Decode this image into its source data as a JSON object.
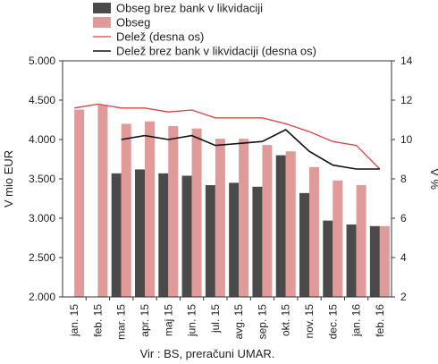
{
  "chart_data": {
    "type": "bar",
    "categories": [
      "jan. 15",
      "feb. 15",
      "mar. 15",
      "apr. 15",
      "maj 15",
      "jun. 15",
      "jul. 15",
      "avg. 15",
      "sep. 15",
      "okt. 15",
      "nov. 15",
      "dec. 15",
      "jan. 16",
      "feb. 16"
    ],
    "series": [
      {
        "name": "Obseg brez bank v likvidaciji",
        "kind": "bar",
        "axis": "left",
        "color": "#4a4a4a",
        "values": [
          null,
          null,
          3570,
          3620,
          3570,
          3540,
          3420,
          3450,
          3400,
          3800,
          3320,
          2970,
          2920,
          2900
        ]
      },
      {
        "name": "Obseg",
        "kind": "bar",
        "axis": "left",
        "color": "#e09a9a",
        "values": [
          4380,
          4440,
          4200,
          4230,
          4170,
          4140,
          4010,
          4010,
          3930,
          3850,
          3650,
          3480,
          3420,
          2900
        ]
      },
      {
        "name": "Delež (desna os)",
        "kind": "line",
        "axis": "right",
        "color": "#d94040",
        "values": [
          11.6,
          11.8,
          11.6,
          11.6,
          11.4,
          11.5,
          11.1,
          11.1,
          11.1,
          10.8,
          10.4,
          9.9,
          9.7,
          8.5
        ]
      },
      {
        "name": "Delež brez bank v likvidaciji (desna os)",
        "kind": "line",
        "axis": "right",
        "color": "#111111",
        "values": [
          null,
          null,
          10.0,
          10.2,
          10.0,
          10.2,
          9.7,
          9.8,
          9.9,
          10.5,
          9.4,
          8.7,
          8.5,
          8.5
        ]
      }
    ],
    "ylabel": "V mio EUR",
    "ylabel_right": "V %",
    "ylim": [
      2000,
      5000
    ],
    "yticks": [
      "2.000",
      "2.500",
      "3.000",
      "3.500",
      "4.000",
      "4.500",
      "5.000"
    ],
    "ylim_right": [
      2,
      14
    ],
    "yticks_right": [
      "2",
      "4",
      "6",
      "8",
      "10",
      "12",
      "14"
    ],
    "grid": false,
    "legend": "top",
    "source": "Vir : BS, preračuni UMAR."
  }
}
